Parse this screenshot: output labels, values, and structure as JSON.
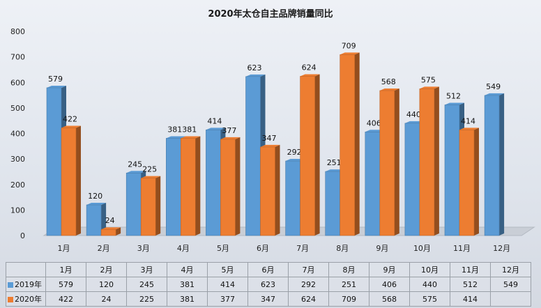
{
  "chart_data": {
    "type": "bar",
    "title": "2020年太仓自主品牌销量同比",
    "categories": [
      "1月",
      "2月",
      "3月",
      "4月",
      "5月",
      "6月",
      "7月",
      "8月",
      "9月",
      "10月",
      "11月",
      "12月"
    ],
    "series": [
      {
        "name": "2019年",
        "color": "#5b9bd5",
        "values": [
          579,
          120,
          245,
          381,
          414,
          623,
          292,
          251,
          406,
          440,
          512,
          549
        ]
      },
      {
        "name": "2020年",
        "color": "#ed7d31",
        "values": [
          422,
          24,
          225,
          381,
          377,
          347,
          624,
          709,
          568,
          575,
          414,
          null
        ]
      }
    ],
    "ylim": [
      0,
      800
    ],
    "yticks": [
      0,
      100,
      200,
      300,
      400,
      500,
      600,
      700,
      800
    ],
    "xlabel": "",
    "ylabel": "",
    "grid": false,
    "legend": "data table",
    "table_rows": [
      {
        "legend": "2019年",
        "cells": [
          "579",
          "120",
          "245",
          "381",
          "414",
          "623",
          "292",
          "251",
          "406",
          "440",
          "512",
          "549"
        ]
      },
      {
        "legend": "2020年",
        "cells": [
          "422",
          "24",
          "225",
          "381",
          "377",
          "347",
          "624",
          "709",
          "568",
          "575",
          "414",
          ""
        ]
      }
    ]
  }
}
